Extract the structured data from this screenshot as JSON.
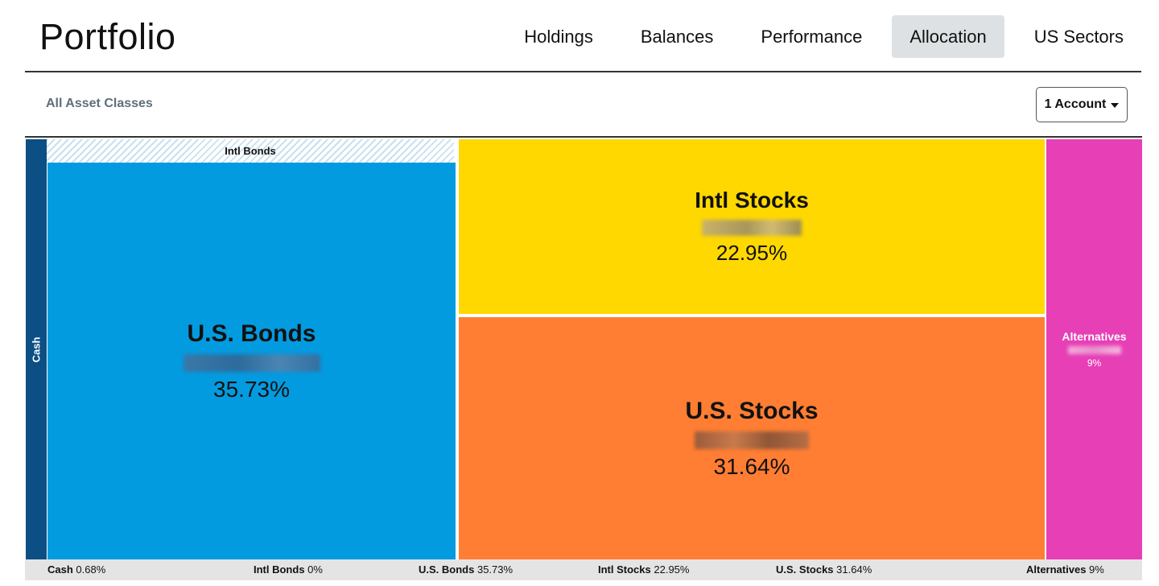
{
  "header": {
    "title": "Portfolio",
    "tabs": [
      {
        "label": "Holdings",
        "active": false
      },
      {
        "label": "Balances",
        "active": false
      },
      {
        "label": "Performance",
        "active": false
      },
      {
        "label": "Allocation",
        "active": true
      },
      {
        "label": "US Sectors",
        "active": false
      }
    ]
  },
  "filters": {
    "asset_classes_label": "All Asset Classes",
    "account_select": "1 Account",
    "account_select_icon": "caret-down-icon"
  },
  "chart_data": {
    "type": "treemap",
    "series": [
      {
        "name": "Cash",
        "percent_label": "0.68%",
        "value": 0.68,
        "color": "#0b4f85"
      },
      {
        "name": "Intl Bonds",
        "percent_label": "0%",
        "value": 0,
        "color": "#c8e1ef"
      },
      {
        "name": "U.S. Bonds",
        "percent_label": "35.73%",
        "value": 35.73,
        "color": "#039be0"
      },
      {
        "name": "Intl Stocks",
        "percent_label": "22.95%",
        "value": 22.95,
        "color": "#ffd800"
      },
      {
        "name": "U.S. Stocks",
        "percent_label": "31.64%",
        "value": 31.64,
        "color": "#ff7e33"
      },
      {
        "name": "Alternatives",
        "percent_label": "9%",
        "value": 9,
        "color": "#e73fb6"
      }
    ]
  },
  "legend": [
    {
      "name": "Cash",
      "pct": "0.68%"
    },
    {
      "name": "Intl Bonds",
      "pct": "0%"
    },
    {
      "name": "U.S. Bonds",
      "pct": "35.73%"
    },
    {
      "name": "Intl Stocks",
      "pct": "22.95%"
    },
    {
      "name": "U.S. Stocks",
      "pct": "31.64%"
    },
    {
      "name": "Alternatives",
      "pct": "9%"
    }
  ]
}
